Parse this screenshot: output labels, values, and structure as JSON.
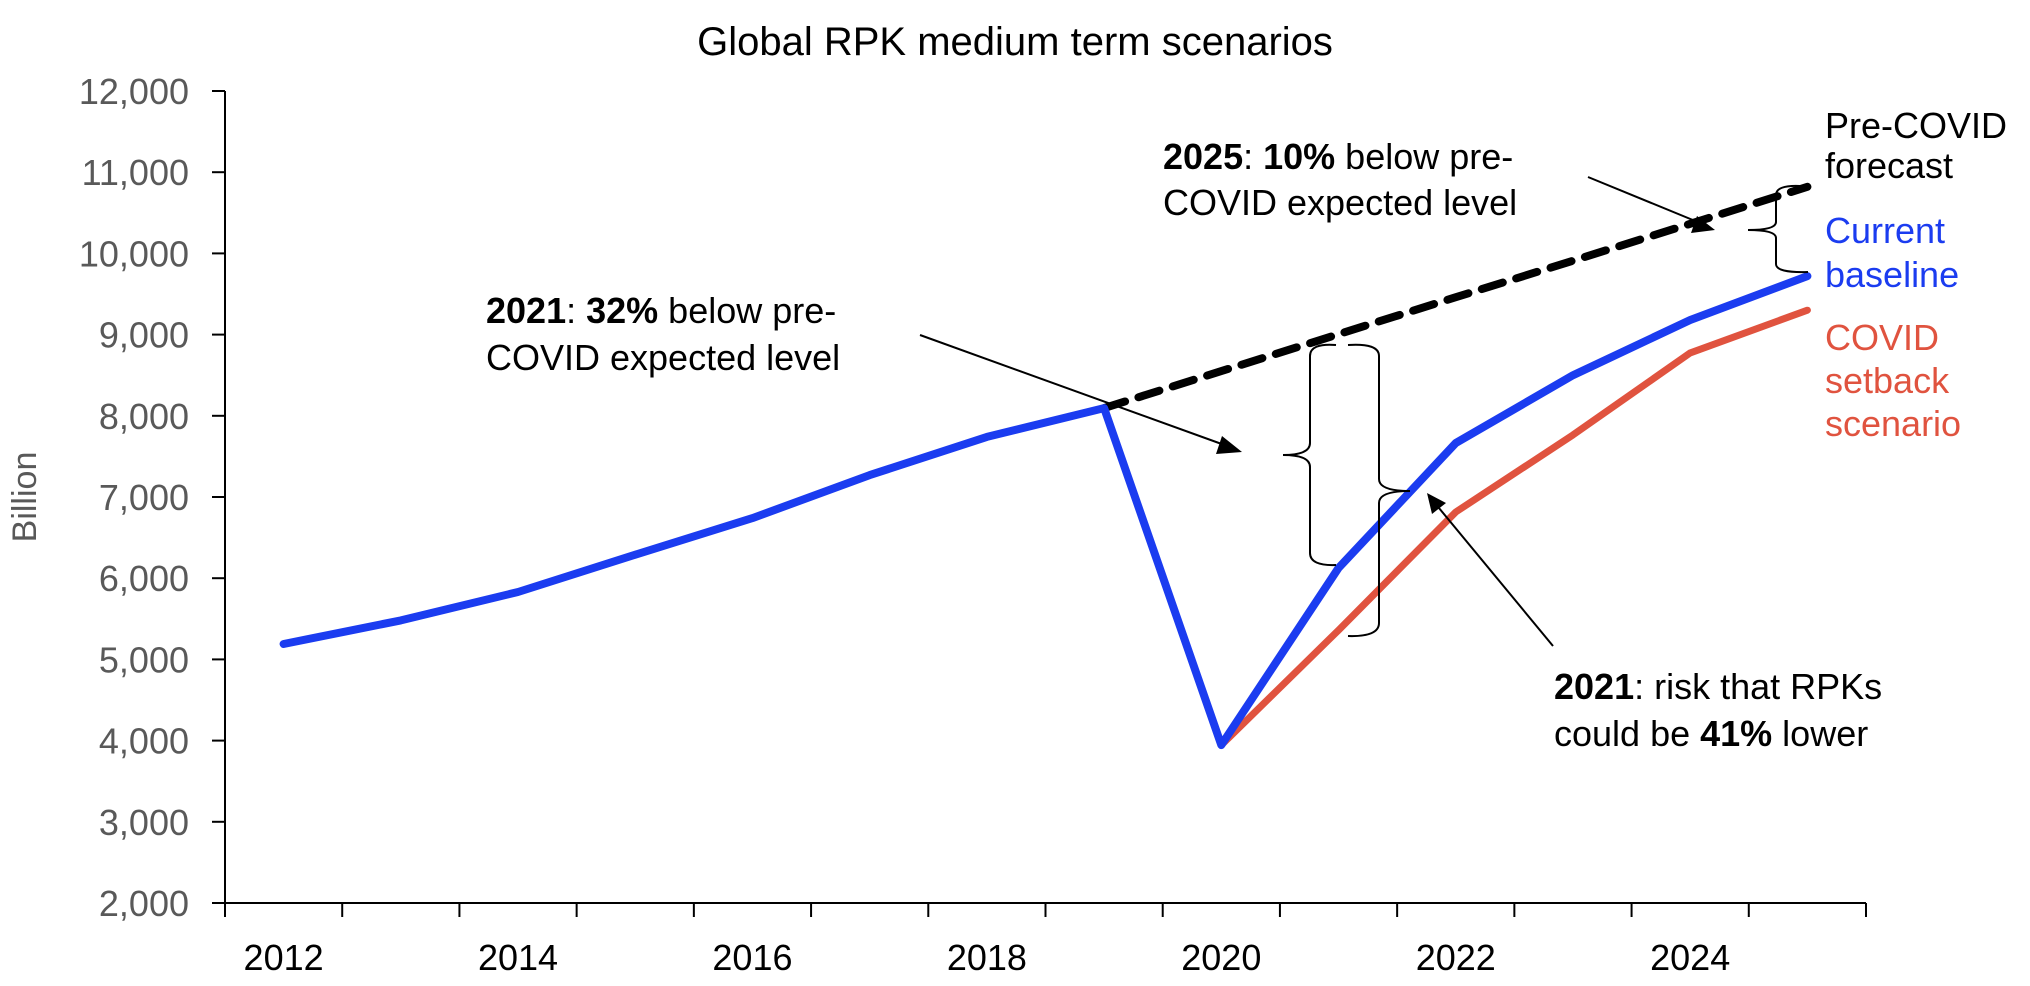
{
  "chart_data": {
    "type": "line",
    "title": "Global RPK medium term scenarios",
    "xlabel": "",
    "ylabel": "Billion",
    "x": [
      2012,
      2013,
      2014,
      2015,
      2016,
      2017,
      2018,
      2019,
      2020,
      2021,
      2022,
      2023,
      2024,
      2025
    ],
    "xtick_labels": [
      "2012",
      "2014",
      "2016",
      "2018",
      "2020",
      "2022",
      "2024"
    ],
    "ylim": [
      2000,
      12000
    ],
    "yticks": [
      2000,
      3000,
      4000,
      5000,
      6000,
      7000,
      8000,
      9000,
      10000,
      11000,
      12000
    ],
    "ytick_labels": [
      "2,000",
      "3,000",
      "4,000",
      "5,000",
      "6,000",
      "7,000",
      "8,000",
      "9,000",
      "10,000",
      "11,000",
      "12,000"
    ],
    "grid": false,
    "legend": "inline-right",
    "series": [
      {
        "name": "Current baseline",
        "label_lines": [
          "Current",
          "baseline"
        ],
        "color": "#1b3cf0",
        "style": "solid",
        "values": [
          5190,
          5480,
          5830,
          6290,
          6740,
          7270,
          7740,
          8095,
          3945,
          6125,
          7665,
          8500,
          9180,
          9720
        ]
      },
      {
        "name": "COVID setback scenario",
        "label_lines": [
          "COVID",
          "setback",
          "scenario"
        ],
        "color": "#e0533f",
        "style": "solid",
        "values": [
          null,
          null,
          null,
          null,
          null,
          null,
          null,
          null,
          3945,
          5360,
          6815,
          7765,
          8775,
          9300
        ]
      },
      {
        "name": "Pre-COVID forecast",
        "label_lines": [
          "Pre-COVID",
          "forecast"
        ],
        "color": "#000000",
        "style": "dashed",
        "values": [
          null,
          null,
          null,
          null,
          null,
          null,
          null,
          8095,
          8550,
          9005,
          9460,
          9910,
          10365,
          10820
        ]
      }
    ],
    "annotations": [
      {
        "id": "annot-2021-32",
        "lines": [
          [
            {
              "text": "2021",
              "bold": true
            },
            {
              "text": ": ",
              "bold": false
            },
            {
              "text": "32%",
              "bold": true
            },
            {
              "text": " below pre-",
              "bold": false
            }
          ],
          [
            {
              "text": "COVID expected level",
              "bold": false
            }
          ]
        ]
      },
      {
        "id": "annot-2025-10",
        "lines": [
          [
            {
              "text": "2025",
              "bold": true
            },
            {
              "text": ": ",
              "bold": false
            },
            {
              "text": "10%",
              "bold": true
            },
            {
              "text": " below pre-",
              "bold": false
            }
          ],
          [
            {
              "text": "COVID expected level",
              "bold": false
            }
          ]
        ]
      },
      {
        "id": "annot-2021-41",
        "lines": [
          [
            {
              "text": "2021",
              "bold": true
            },
            {
              "text": ": risk that RPKs",
              "bold": false
            }
          ],
          [
            {
              "text": "could be ",
              "bold": false
            },
            {
              "text": "41%",
              "bold": true
            },
            {
              "text": " lower",
              "bold": false
            }
          ]
        ]
      }
    ]
  }
}
